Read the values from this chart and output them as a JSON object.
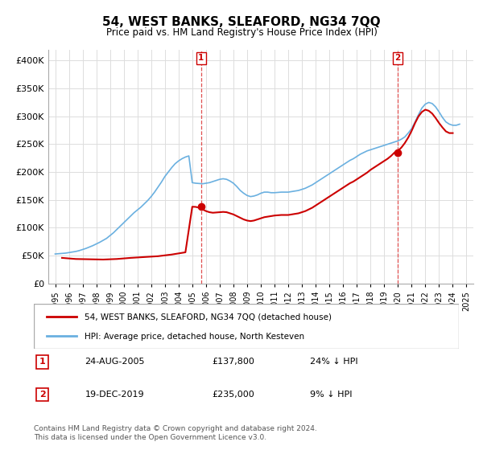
{
  "title": "54, WEST BANKS, SLEAFORD, NG34 7QQ",
  "subtitle": "Price paid vs. HM Land Registry's House Price Index (HPI)",
  "legend_line1": "54, WEST BANKS, SLEAFORD, NG34 7QQ (detached house)",
  "legend_line2": "HPI: Average price, detached house, North Kesteven",
  "footer1": "Contains HM Land Registry data © Crown copyright and database right 2024.",
  "footer2": "This data is licensed under the Open Government Licence v3.0.",
  "sale1_label": "1",
  "sale1_date": "24-AUG-2005",
  "sale1_price": "£137,800",
  "sale1_hpi": "24% ↓ HPI",
  "sale2_label": "2",
  "sale2_date": "19-DEC-2019",
  "sale2_price": "£235,000",
  "sale2_hpi": "9% ↓ HPI",
  "sale1_x": 2005.65,
  "sale1_y": 137800,
  "sale2_x": 2019.97,
  "sale2_y": 235000,
  "hpi_color": "#6ab0e0",
  "price_color": "#cc0000",
  "marker_color": "#cc0000",
  "vline_color": "#e05050",
  "grid_color": "#dddddd",
  "ylim": [
    0,
    420000
  ],
  "xlim": [
    1994.5,
    2025.5
  ],
  "yticks": [
    0,
    50000,
    100000,
    150000,
    200000,
    250000,
    300000,
    350000,
    400000
  ],
  "ytick_labels": [
    "£0",
    "£50K",
    "£100K",
    "£150K",
    "£200K",
    "£250K",
    "£300K",
    "£350K",
    "£400K"
  ],
  "xticks": [
    1995,
    1996,
    1997,
    1998,
    1999,
    2000,
    2001,
    2002,
    2003,
    2004,
    2005,
    2006,
    2007,
    2008,
    2009,
    2010,
    2011,
    2012,
    2013,
    2014,
    2015,
    2016,
    2017,
    2018,
    2019,
    2020,
    2021,
    2022,
    2023,
    2024,
    2025
  ],
  "hpi_data_x": [
    1995.0,
    1995.25,
    1995.5,
    1995.75,
    1996.0,
    1996.25,
    1996.5,
    1996.75,
    1997.0,
    1997.25,
    1997.5,
    1997.75,
    1998.0,
    1998.25,
    1998.5,
    1998.75,
    1999.0,
    1999.25,
    1999.5,
    1999.75,
    2000.0,
    2000.25,
    2000.5,
    2000.75,
    2001.0,
    2001.25,
    2001.5,
    2001.75,
    2002.0,
    2002.25,
    2002.5,
    2002.75,
    2003.0,
    2003.25,
    2003.5,
    2003.75,
    2004.0,
    2004.25,
    2004.5,
    2004.75,
    2005.0,
    2005.25,
    2005.5,
    2005.75,
    2006.0,
    2006.25,
    2006.5,
    2006.75,
    2007.0,
    2007.25,
    2007.5,
    2007.75,
    2008.0,
    2008.25,
    2008.5,
    2008.75,
    2009.0,
    2009.25,
    2009.5,
    2009.75,
    2010.0,
    2010.25,
    2010.5,
    2010.75,
    2011.0,
    2011.25,
    2011.5,
    2011.75,
    2012.0,
    2012.25,
    2012.5,
    2012.75,
    2013.0,
    2013.25,
    2013.5,
    2013.75,
    2014.0,
    2014.25,
    2014.5,
    2014.75,
    2015.0,
    2015.25,
    2015.5,
    2015.75,
    2016.0,
    2016.25,
    2016.5,
    2016.75,
    2017.0,
    2017.25,
    2017.5,
    2017.75,
    2018.0,
    2018.25,
    2018.5,
    2018.75,
    2019.0,
    2019.25,
    2019.5,
    2019.75,
    2020.0,
    2020.25,
    2020.5,
    2020.75,
    2021.0,
    2021.25,
    2021.5,
    2021.75,
    2022.0,
    2022.25,
    2022.5,
    2022.75,
    2023.0,
    2023.25,
    2023.5,
    2023.75,
    2024.0,
    2024.25,
    2024.5
  ],
  "hpi_data_y": [
    53000,
    53500,
    54000,
    54500,
    55500,
    56500,
    57500,
    59000,
    61000,
    63000,
    65500,
    68000,
    71000,
    74000,
    77500,
    81000,
    86000,
    91000,
    97000,
    103000,
    109000,
    115000,
    121000,
    127000,
    132000,
    137000,
    143000,
    149000,
    156000,
    164000,
    173000,
    182000,
    192000,
    200000,
    208000,
    215000,
    220000,
    224000,
    227000,
    229000,
    181000,
    180000,
    179500,
    179000,
    180000,
    181000,
    183000,
    185000,
    187000,
    188000,
    187000,
    184000,
    180000,
    174000,
    167000,
    162000,
    158000,
    156000,
    157000,
    159000,
    162000,
    164000,
    164000,
    163000,
    163000,
    163500,
    164000,
    164000,
    164000,
    165000,
    166000,
    167000,
    169000,
    171000,
    174000,
    177000,
    181000,
    185000,
    189000,
    193000,
    197000,
    201000,
    205000,
    209000,
    213000,
    217000,
    221000,
    224000,
    228000,
    232000,
    235000,
    238000,
    240000,
    242000,
    244000,
    246000,
    248000,
    250000,
    252000,
    254000,
    256000,
    259000,
    263000,
    270000,
    278000,
    290000,
    303000,
    315000,
    322000,
    325000,
    323000,
    317000,
    308000,
    298000,
    290000,
    286000,
    284000,
    284000,
    286000
  ],
  "price_data_x": [
    1995.5,
    1996.5,
    1997.5,
    1998.5,
    1999.5,
    2000.5,
    2001.5,
    2002.5,
    2003.5,
    2004.5,
    2005.0,
    2005.25,
    2005.5,
    2005.75,
    2006.0,
    2006.25,
    2006.5,
    2006.75,
    2007.0,
    2007.25,
    2007.5,
    2007.75,
    2008.0,
    2008.25,
    2008.5,
    2008.75,
    2009.0,
    2009.25,
    2009.5,
    2009.75,
    2010.0,
    2010.25,
    2010.5,
    2010.75,
    2011.0,
    2011.25,
    2011.5,
    2011.75,
    2012.0,
    2012.25,
    2012.5,
    2012.75,
    2013.0,
    2013.25,
    2013.5,
    2013.75,
    2014.0,
    2014.25,
    2014.5,
    2014.75,
    2015.0,
    2015.25,
    2015.5,
    2015.75,
    2016.0,
    2016.25,
    2016.5,
    2016.75,
    2017.0,
    2017.25,
    2017.5,
    2017.75,
    2018.0,
    2018.25,
    2018.5,
    2018.75,
    2019.0,
    2019.25,
    2019.5,
    2019.75,
    2020.0,
    2020.25,
    2020.5,
    2020.75,
    2021.0,
    2021.25,
    2021.5,
    2021.75,
    2022.0,
    2022.25,
    2022.5,
    2022.75,
    2023.0,
    2023.25,
    2023.5,
    2023.75,
    2024.0
  ],
  "price_data_y": [
    46000,
    44000,
    43500,
    43000,
    44000,
    46000,
    47500,
    49000,
    52000,
    56000,
    137800,
    137500,
    136000,
    133000,
    130000,
    128000,
    127000,
    127500,
    128000,
    128500,
    128000,
    126000,
    124000,
    121000,
    118000,
    115000,
    113000,
    112000,
    113000,
    115000,
    117000,
    119000,
    120000,
    121000,
    122000,
    122500,
    123000,
    123000,
    123000,
    124000,
    125000,
    126000,
    128000,
    130000,
    133000,
    136000,
    140000,
    144000,
    148000,
    152000,
    156000,
    160000,
    164000,
    168000,
    172000,
    176000,
    180000,
    183000,
    187000,
    191000,
    195000,
    199000,
    204000,
    208000,
    212000,
    216000,
    220000,
    224000,
    229000,
    235000,
    238000,
    244000,
    252000,
    262000,
    274000,
    288000,
    300000,
    308000,
    312000,
    310000,
    305000,
    297000,
    288000,
    280000,
    273000,
    270000,
    270000
  ]
}
